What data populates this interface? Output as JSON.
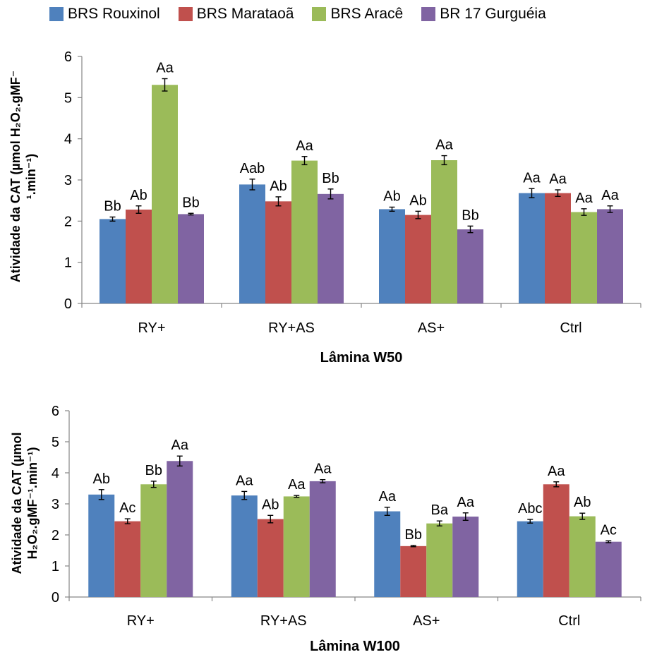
{
  "legend": [
    {
      "name": "BRS Rouxinol",
      "color": "#4F81BD"
    },
    {
      "name": "BRS Marataoã",
      "color": "#C0504D"
    },
    {
      "name": "BRS Aracê",
      "color": "#9BBB59"
    },
    {
      "name": "BR 17 Gurguéia",
      "color": "#8064A2"
    }
  ],
  "chart_data": [
    {
      "type": "bar",
      "categories": [
        "RY+",
        "RY+AS",
        "AS+",
        "Ctrl"
      ],
      "xlabel": "Lâmina W50",
      "ylabel_lines": [
        "Atividade da CAT (µmol H₂O₂.gMF⁻",
        "¹.min⁻¹)"
      ],
      "ylim": [
        0,
        6
      ],
      "yticks": [
        "0",
        "1",
        "2",
        "3",
        "4",
        "5",
        "6"
      ],
      "series": [
        {
          "name": "BRS Rouxinol",
          "color": "#4F81BD",
          "values": [
            2.05,
            2.89,
            2.29,
            2.68
          ],
          "errors": [
            0.05,
            0.13,
            0.05,
            0.11
          ],
          "labels": [
            "Bb",
            "Aab",
            "Ab",
            "Aa"
          ]
        },
        {
          "name": "BRS Marataoã",
          "color": "#C0504D",
          "values": [
            2.28,
            2.48,
            2.15,
            2.68
          ],
          "errors": [
            0.09,
            0.11,
            0.09,
            0.08
          ],
          "labels": [
            "Ab",
            "Ab",
            "Ab",
            "Aa"
          ]
        },
        {
          "name": "BRS Aracê",
          "color": "#9BBB59",
          "values": [
            5.31,
            3.47,
            3.48,
            2.22
          ],
          "errors": [
            0.15,
            0.1,
            0.11,
            0.08
          ],
          "labels": [
            "Aa",
            "Aa",
            "Aa",
            "Aa"
          ]
        },
        {
          "name": "BR 17 Gurguéia",
          "color": "#8064A2",
          "values": [
            2.17,
            2.66,
            1.8,
            2.29
          ],
          "errors": [
            0.02,
            0.12,
            0.08,
            0.08
          ],
          "labels": [
            "Bb",
            "Bb",
            "Bb",
            "Aa"
          ]
        }
      ]
    },
    {
      "type": "bar",
      "categories": [
        "RY+",
        "RY+AS",
        "AS+",
        "Ctrl"
      ],
      "xlabel": "Lâmina W100",
      "ylabel_lines": [
        "Atividade da CAT (µmol",
        "H₂O₂.gMF⁻¹.min⁻¹)"
      ],
      "ylim": [
        0,
        6
      ],
      "yticks": [
        "0",
        "1",
        "2",
        "3",
        "4",
        "5",
        "6"
      ],
      "series": [
        {
          "name": "BRS Rouxinol",
          "color": "#4F81BD",
          "values": [
            3.3,
            3.27,
            2.76,
            2.44
          ],
          "errors": [
            0.16,
            0.13,
            0.13,
            0.06
          ],
          "labels": [
            "Ab",
            "Aa",
            "Aa",
            "Abc"
          ]
        },
        {
          "name": "BRS Marataoã",
          "color": "#C0504D",
          "values": [
            2.44,
            2.51,
            1.64,
            3.63
          ],
          "errors": [
            0.08,
            0.12,
            0.02,
            0.08
          ],
          "labels": [
            "Ac",
            "Ab",
            "Bb",
            "Aa"
          ]
        },
        {
          "name": "BRS Aracê",
          "color": "#9BBB59",
          "values": [
            3.63,
            3.24,
            2.37,
            2.6
          ],
          "errors": [
            0.1,
            0.03,
            0.08,
            0.1
          ],
          "labels": [
            "Bb",
            "Aa",
            "Ba",
            "Ab"
          ]
        },
        {
          "name": "BR 17 Gurguéia",
          "color": "#8064A2",
          "values": [
            4.38,
            3.73,
            2.59,
            1.78
          ],
          "errors": [
            0.16,
            0.05,
            0.12,
            0.03
          ],
          "labels": [
            "Aa",
            "Aa",
            "Aa",
            "Ac"
          ]
        }
      ]
    }
  ]
}
